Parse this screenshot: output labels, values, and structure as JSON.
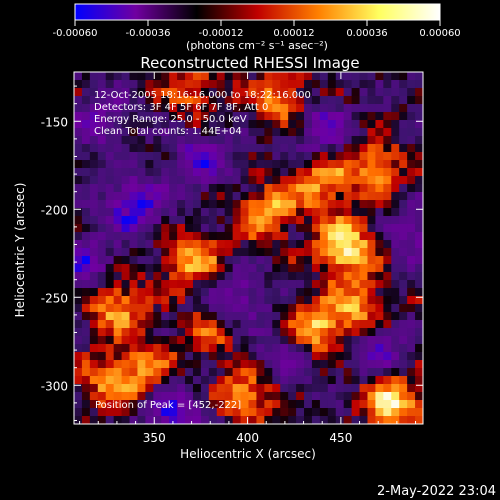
{
  "chart_data": {
    "type": "heatmap",
    "title": "Reconstructed RHESSI Image",
    "xlabel": "Heliocentric X (arcsec)",
    "ylabel": "Heliocentric Y (arcsec)",
    "xlim": [
      307,
      494
    ],
    "ylim": [
      -322,
      -122
    ],
    "x_ticks": [
      350,
      400,
      450
    ],
    "y_ticks": [
      -150,
      -200,
      -250,
      -300
    ],
    "colorbar": {
      "range": [
        -0.0006,
        0.0006
      ],
      "ticks": [
        "-0.00060",
        "-0.00036",
        "-0.00012",
        "0.00012",
        "0.00036",
        "0.00060"
      ],
      "label": "(photons cm⁻² s⁻¹ asec⁻²)",
      "colors": [
        "#0000ff",
        "#7000a0",
        "#000000",
        "#c00000",
        "#ff8000",
        "#ffff60",
        "#ffffff"
      ]
    },
    "annotations": [
      "12-Oct-2005 18:16:16.000 to 18:22:16.000",
      "Detectors: 3F 4F 5F 6F 7F 8F, Att 0",
      "Energy Range: 25.0 - 50.0 keV",
      "Clean     Total counts: 1.44E+04"
    ],
    "peak_label": "Position of Peak = [452,-222]",
    "peak": [
      452,
      -222
    ],
    "timestamp": "2-May-2022 23:04",
    "bright_sources": [
      {
        "x": 452,
        "y": -222,
        "intensity": 1.0
      },
      {
        "x": 437,
        "y": -268,
        "intensity": 0.8
      },
      {
        "x": 410,
        "y": -202,
        "intensity": 0.75
      },
      {
        "x": 440,
        "y": -185,
        "intensity": 0.7
      },
      {
        "x": 468,
        "y": -175,
        "intensity": 0.65
      },
      {
        "x": 478,
        "y": -310,
        "intensity": 0.9
      },
      {
        "x": 370,
        "y": -228,
        "intensity": 0.7
      },
      {
        "x": 330,
        "y": -255,
        "intensity": 0.7
      },
      {
        "x": 345,
        "y": -290,
        "intensity": 0.55
      },
      {
        "x": 400,
        "y": -305,
        "intensity": 0.7
      },
      {
        "x": 418,
        "y": -138,
        "intensity": 0.6
      },
      {
        "x": 372,
        "y": -132,
        "intensity": 0.5
      },
      {
        "x": 325,
        "y": -300,
        "intensity": 0.55
      },
      {
        "x": 460,
        "y": -255,
        "intensity": 0.6
      },
      {
        "x": 380,
        "y": -270,
        "intensity": 0.45
      }
    ],
    "dark_sources": [
      {
        "x": 340,
        "y": -198,
        "intensity": -0.8
      },
      {
        "x": 312,
        "y": -232,
        "intensity": -0.6
      },
      {
        "x": 375,
        "y": -172,
        "intensity": -0.65
      },
      {
        "x": 360,
        "y": -315,
        "intensity": -0.7
      },
      {
        "x": 440,
        "y": -155,
        "intensity": -0.6
      },
      {
        "x": 470,
        "y": -280,
        "intensity": -0.55
      },
      {
        "x": 395,
        "y": -250,
        "intensity": -0.55
      },
      {
        "x": 320,
        "y": -150,
        "intensity": -0.5
      },
      {
        "x": 420,
        "y": -285,
        "intensity": -0.5
      },
      {
        "x": 490,
        "y": -215,
        "intensity": -0.45
      }
    ]
  }
}
